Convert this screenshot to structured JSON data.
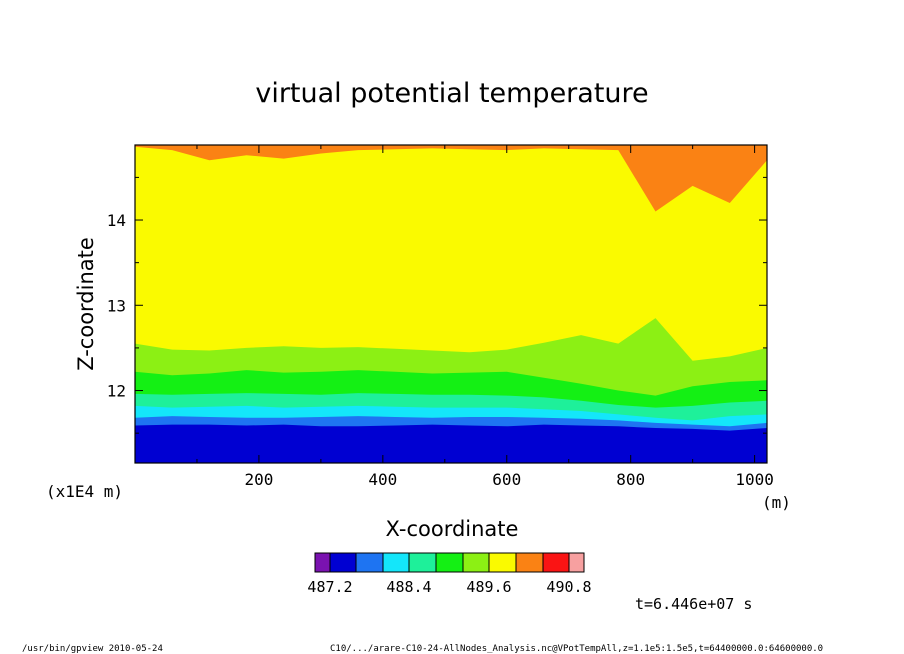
{
  "chart_data": {
    "type": "heatmap",
    "title": "virtual potential temperature",
    "xlabel": "X-coordinate",
    "ylabel": "Z-coordinate",
    "x_unit": "(m)",
    "y_unit": "(x1E4 m)",
    "xlim": [
      0,
      1020
    ],
    "ylim": [
      11.15,
      14.88
    ],
    "x_ticks": [
      200,
      400,
      600,
      800,
      1000
    ],
    "x_tick_labels": [
      "200",
      "400",
      "600",
      "800",
      "1000"
    ],
    "y_ticks": [
      12,
      13,
      14
    ],
    "y_tick_labels": [
      "12",
      "13",
      "14"
    ],
    "colorbar": {
      "colors": [
        "#7a12b0",
        "#0000d2",
        "#1e74f2",
        "#14e6fa",
        "#1ef09a",
        "#14f014",
        "#8cf014",
        "#fafa00",
        "#fa8214",
        "#fa1414",
        "#f7a0a0"
      ],
      "tick_values": [
        "487.2",
        "488.4",
        "489.6",
        "490.8"
      ]
    },
    "level_boundaries_z": [
      {
        "above_level": 1,
        "z": [
          11.59,
          11.6,
          11.6,
          11.59,
          11.6,
          11.58,
          11.58,
          11.59,
          11.6,
          11.59,
          11.58,
          11.6,
          11.59,
          11.58,
          11.56,
          11.55,
          11.53,
          11.56
        ]
      },
      {
        "above_level": 2,
        "z": [
          11.68,
          11.7,
          11.69,
          11.68,
          11.68,
          11.69,
          11.7,
          11.69,
          11.68,
          11.69,
          11.69,
          11.68,
          11.67,
          11.65,
          11.62,
          11.6,
          11.58,
          11.62
        ]
      },
      {
        "above_level": 3,
        "z": [
          11.82,
          11.8,
          11.81,
          11.82,
          11.8,
          11.81,
          11.82,
          11.81,
          11.8,
          11.8,
          11.8,
          11.78,
          11.76,
          11.72,
          11.68,
          11.65,
          11.7,
          11.72
        ]
      },
      {
        "above_level": 4,
        "z": [
          11.96,
          11.95,
          11.96,
          11.97,
          11.96,
          11.95,
          11.97,
          11.96,
          11.95,
          11.95,
          11.94,
          11.92,
          11.88,
          11.83,
          11.8,
          11.82,
          11.86,
          11.88
        ]
      },
      {
        "above_level": 5,
        "z": [
          12.22,
          12.18,
          12.2,
          12.24,
          12.21,
          12.22,
          12.24,
          12.22,
          12.2,
          12.21,
          12.22,
          12.15,
          12.08,
          12.0,
          11.94,
          12.05,
          12.1,
          12.12
        ]
      },
      {
        "above_level": 6,
        "z": [
          12.55,
          12.48,
          12.47,
          12.5,
          12.52,
          12.5,
          12.51,
          12.49,
          12.47,
          12.45,
          12.48,
          12.56,
          12.65,
          12.55,
          12.85,
          12.35,
          12.4,
          12.5
        ]
      },
      {
        "above_level": 7,
        "z": [
          14.86,
          14.82,
          14.7,
          14.76,
          14.72,
          14.78,
          14.82,
          14.83,
          14.84,
          14.83,
          14.82,
          14.84,
          14.83,
          14.82,
          14.1,
          14.4,
          14.2,
          14.7
        ]
      }
    ],
    "level_boundaries_x": [
      0,
      60,
      120,
      180,
      240,
      300,
      360,
      420,
      480,
      540,
      600,
      660,
      720,
      780,
      840,
      900,
      960,
      1020
    ],
    "time_label": "t=6.446e+07 s"
  },
  "footer": {
    "left": "/usr/bin/gpview   2010-05-24",
    "right": "C10/.../arare-C10-24-AllNodes_Analysis.nc@VPotTempAll,z=1.1e5:1.5e5,t=64400000.0:64600000.0"
  }
}
